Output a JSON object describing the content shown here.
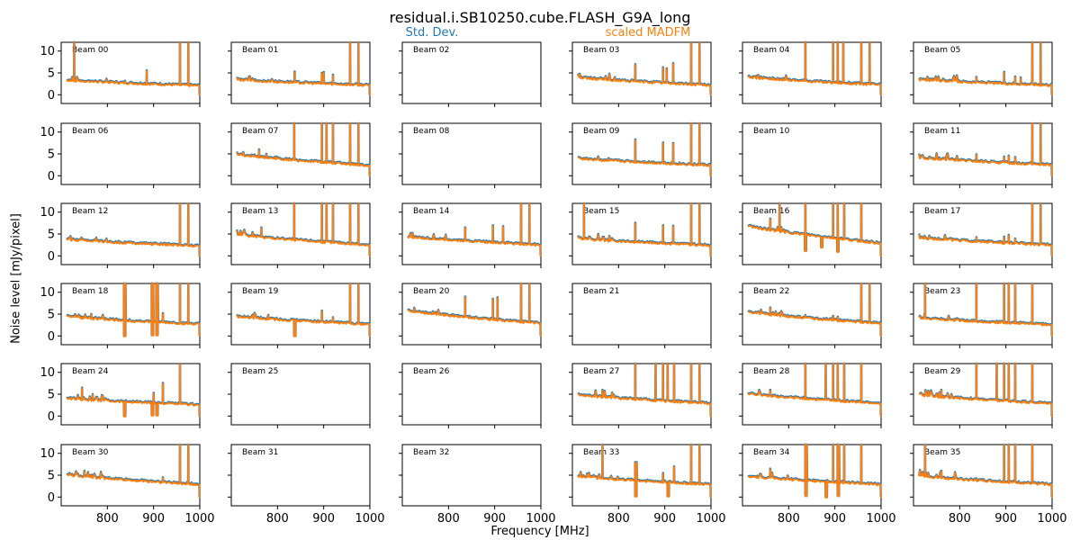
{
  "chart_data": {
    "type": "line",
    "title": "residual.i.SB10250.cube.FLASH_G9A_long",
    "xlabel": "Frequency [MHz]",
    "ylabel": "Noise level [mJy/pixel]",
    "xlim": [
      700,
      1000
    ],
    "ylim": [
      -2,
      12
    ],
    "xticks": [
      800,
      900,
      1000
    ],
    "yticks": [
      0,
      5,
      10
    ],
    "series_legend": [
      {
        "name": "Std. Dev.",
        "color": "#1f77b4"
      },
      {
        "name": "scaled MADFM",
        "color": "#ff7f0e"
      }
    ],
    "grid_rows": 6,
    "grid_cols": 6,
    "beams": [
      {
        "label": "Beam 00",
        "has_data": true,
        "start": 3.5,
        "end": 2.2,
        "spikes": [
          [
            728,
            12.5
          ],
          [
            838,
            3.2
          ],
          [
            885,
            5.6
          ],
          [
            957,
            12.5
          ],
          [
            975,
            12.5
          ]
        ],
        "dips": []
      },
      {
        "label": "Beam 01",
        "has_data": true,
        "start": 3.6,
        "end": 2.3,
        "spikes": [
          [
            728,
            3.6
          ],
          [
            837,
            5.3
          ],
          [
            896,
            5.0
          ],
          [
            900,
            5.2
          ],
          [
            920,
            4.6
          ],
          [
            957,
            12.5
          ],
          [
            975,
            12.5
          ]
        ],
        "dips": []
      },
      {
        "label": "Beam 02",
        "has_data": false
      },
      {
        "label": "Beam 03",
        "has_data": true,
        "start": 4.1,
        "end": 2.3,
        "spikes": [
          [
            740,
            3.8
          ],
          [
            836,
            7.0
          ],
          [
            896,
            6.3
          ],
          [
            904,
            6.0
          ],
          [
            918,
            7.2
          ],
          [
            957,
            12.5
          ],
          [
            975,
            12.5
          ]
        ],
        "dips": []
      },
      {
        "label": "Beam 04",
        "has_data": true,
        "start": 4.2,
        "end": 2.4,
        "spikes": [
          [
            765,
            4.0
          ],
          [
            836,
            12.5
          ],
          [
            896,
            12.5
          ],
          [
            906,
            12.5
          ],
          [
            918,
            12.5
          ],
          [
            957,
            12.5
          ],
          [
            975,
            12.5
          ]
        ],
        "dips": []
      },
      {
        "label": "Beam 05",
        "has_data": true,
        "start": 3.6,
        "end": 2.3,
        "spikes": [
          [
            836,
            4.1
          ],
          [
            896,
            5.2
          ],
          [
            920,
            4.2
          ],
          [
            932,
            4.0
          ],
          [
            957,
            12.5
          ],
          [
            975,
            12.5
          ]
        ],
        "dips": []
      },
      {
        "label": "Beam 06",
        "has_data": false
      },
      {
        "label": "Beam 07",
        "has_data": true,
        "start": 5.0,
        "end": 2.5,
        "spikes": [
          [
            760,
            6.0
          ],
          [
            836,
            12.5
          ],
          [
            896,
            12.5
          ],
          [
            906,
            12.5
          ],
          [
            920,
            12.5
          ],
          [
            957,
            12.5
          ],
          [
            975,
            12.5
          ]
        ],
        "dips": []
      },
      {
        "label": "Beam 08",
        "has_data": false
      },
      {
        "label": "Beam 09",
        "has_data": true,
        "start": 4.1,
        "end": 2.5,
        "spikes": [
          [
            836,
            8.3
          ],
          [
            896,
            7.6
          ],
          [
            918,
            7.5
          ],
          [
            957,
            12.5
          ],
          [
            975,
            12.5
          ]
        ],
        "dips": []
      },
      {
        "label": "Beam 10",
        "has_data": false
      },
      {
        "label": "Beam 11",
        "has_data": true,
        "start": 4.3,
        "end": 2.6,
        "spikes": [
          [
            836,
            4.9
          ],
          [
            896,
            4.4
          ],
          [
            906,
            4.6
          ],
          [
            920,
            4.3
          ],
          [
            957,
            12.5
          ],
          [
            975,
            12.5
          ]
        ],
        "dips": []
      },
      {
        "label": "Beam 12",
        "has_data": true,
        "start": 3.9,
        "end": 2.4,
        "spikes": [
          [
            957,
            12.5
          ],
          [
            975,
            12.5
          ]
        ],
        "dips": []
      },
      {
        "label": "Beam 13",
        "has_data": true,
        "start": 5.0,
        "end": 2.6,
        "spikes": [
          [
            765,
            6.5
          ],
          [
            836,
            12.5
          ],
          [
            896,
            12.5
          ],
          [
            906,
            12.5
          ],
          [
            920,
            12.5
          ],
          [
            957,
            12.5
          ],
          [
            975,
            12.5
          ]
        ],
        "dips": []
      },
      {
        "label": "Beam 14",
        "has_data": true,
        "start": 4.5,
        "end": 2.6,
        "spikes": [
          [
            836,
            6.5
          ],
          [
            896,
            7.0
          ],
          [
            918,
            6.8
          ],
          [
            957,
            12.5
          ],
          [
            975,
            12.5
          ]
        ],
        "dips": []
      },
      {
        "label": "Beam 15",
        "has_data": true,
        "start": 4.1,
        "end": 2.5,
        "spikes": [
          [
            725,
            12.5
          ],
          [
            836,
            7.6
          ],
          [
            896,
            7.0
          ],
          [
            918,
            6.9
          ],
          [
            957,
            12.5
          ],
          [
            975,
            12.5
          ]
        ],
        "dips": []
      },
      {
        "label": "Beam 16",
        "has_data": true,
        "start": 7.0,
        "end": 3.0,
        "spikes": [
          [
            760,
            8.5
          ],
          [
            780,
            12.5
          ],
          [
            836,
            12.5
          ],
          [
            896,
            12.5
          ],
          [
            906,
            12.5
          ],
          [
            920,
            12.5
          ],
          [
            957,
            12.5
          ]
        ],
        "dips": [
          [
            835,
            1.2
          ],
          [
            870,
            2.0
          ],
          [
            905,
            1.0
          ]
        ]
      },
      {
        "label": "Beam 17",
        "has_data": true,
        "start": 4.3,
        "end": 2.6,
        "spikes": [
          [
            836,
            4.3
          ],
          [
            896,
            4.4
          ],
          [
            906,
            4.8
          ],
          [
            920,
            4.0
          ],
          [
            957,
            12.5
          ],
          [
            975,
            12.5
          ]
        ],
        "dips": []
      },
      {
        "label": "Beam 18",
        "has_data": true,
        "start": 4.6,
        "end": 2.8,
        "spikes": [
          [
            765,
            5.0
          ],
          [
            836,
            12.5
          ],
          [
            896,
            12.5
          ],
          [
            906,
            12.5
          ],
          [
            920,
            5.2
          ],
          [
            957,
            12.5
          ],
          [
            975,
            12.5
          ]
        ],
        "dips": [
          [
            836,
            0.0
          ],
          [
            896,
            0.2
          ],
          [
            906,
            0.2
          ]
        ]
      },
      {
        "label": "Beam 19",
        "has_data": true,
        "start": 4.6,
        "end": 2.8,
        "spikes": [
          [
            780,
            4.8
          ],
          [
            896,
            5.8
          ],
          [
            920,
            4.3
          ],
          [
            957,
            12.5
          ],
          [
            975,
            12.5
          ]
        ],
        "dips": [
          [
            836,
            0.0
          ]
        ]
      },
      {
        "label": "Beam 20",
        "has_data": true,
        "start": 6.0,
        "end": 3.0,
        "spikes": [
          [
            836,
            9.0
          ],
          [
            896,
            8.5
          ],
          [
            906,
            8.8
          ],
          [
            957,
            12.5
          ],
          [
            975,
            12.5
          ]
        ],
        "dips": []
      },
      {
        "label": "Beam 21",
        "has_data": false
      },
      {
        "label": "Beam 22",
        "has_data": true,
        "start": 5.6,
        "end": 3.0,
        "spikes": [
          [
            760,
            6.5
          ],
          [
            836,
            4.8
          ],
          [
            896,
            4.6
          ],
          [
            906,
            4.4
          ],
          [
            957,
            12.5
          ],
          [
            975,
            12.5
          ]
        ],
        "dips": []
      },
      {
        "label": "Beam 23",
        "has_data": true,
        "start": 4.3,
        "end": 2.7,
        "spikes": [
          [
            725,
            12.5
          ],
          [
            836,
            12.5
          ],
          [
            896,
            12.5
          ],
          [
            906,
            12.5
          ],
          [
            920,
            12.5
          ],
          [
            957,
            12.5
          ]
        ],
        "dips": []
      },
      {
        "label": "Beam 24",
        "has_data": true,
        "start": 4.2,
        "end": 2.7,
        "spikes": [
          [
            745,
            6.5
          ],
          [
            768,
            5.0
          ],
          [
            900,
            5.3
          ],
          [
            920,
            7.6
          ],
          [
            957,
            12.5
          ]
        ],
        "dips": [
          [
            836,
            0.0
          ],
          [
            896,
            0.2
          ],
          [
            906,
            0.2
          ]
        ]
      },
      {
        "label": "Beam 25",
        "has_data": false
      },
      {
        "label": "Beam 26",
        "has_data": false
      },
      {
        "label": "Beam 27",
        "has_data": true,
        "start": 5.0,
        "end": 3.0,
        "spikes": [
          [
            765,
            6.0
          ],
          [
            836,
            12.5
          ],
          [
            880,
            12.5
          ],
          [
            896,
            12.5
          ],
          [
            906,
            12.5
          ],
          [
            920,
            12.5
          ],
          [
            957,
            12.5
          ],
          [
            975,
            12.5
          ]
        ],
        "dips": []
      },
      {
        "label": "Beam 28",
        "has_data": true,
        "start": 5.3,
        "end": 3.0,
        "spikes": [
          [
            760,
            6.0
          ],
          [
            836,
            12.5
          ],
          [
            880,
            12.5
          ],
          [
            896,
            12.5
          ],
          [
            906,
            12.5
          ],
          [
            920,
            12.5
          ],
          [
            957,
            12.5
          ]
        ],
        "dips": []
      },
      {
        "label": "Beam 29",
        "has_data": true,
        "start": 5.0,
        "end": 3.0,
        "spikes": [
          [
            760,
            6.0
          ],
          [
            836,
            12.5
          ],
          [
            880,
            12.5
          ],
          [
            896,
            12.5
          ],
          [
            906,
            12.5
          ],
          [
            920,
            12.5
          ],
          [
            957,
            12.5
          ]
        ],
        "dips": []
      },
      {
        "label": "Beam 30",
        "has_data": true,
        "start": 5.3,
        "end": 3.0,
        "spikes": [
          [
            750,
            6.0
          ],
          [
            836,
            4.0
          ],
          [
            896,
            3.8
          ],
          [
            920,
            4.5
          ],
          [
            957,
            12.5
          ],
          [
            975,
            12.5
          ]
        ],
        "dips": []
      },
      {
        "label": "Beam 31",
        "has_data": false
      },
      {
        "label": "Beam 32",
        "has_data": false
      },
      {
        "label": "Beam 33",
        "has_data": true,
        "start": 4.9,
        "end": 3.0,
        "spikes": [
          [
            765,
            12.5
          ],
          [
            836,
            8.0
          ],
          [
            896,
            5.5
          ],
          [
            920,
            7.0
          ],
          [
            957,
            12.5
          ],
          [
            975,
            12.5
          ]
        ],
        "dips": [
          [
            836,
            0.2
          ],
          [
            906,
            0.2
          ]
        ]
      },
      {
        "label": "Beam 34",
        "has_data": true,
        "start": 4.9,
        "end": 3.0,
        "spikes": [
          [
            760,
            6.5
          ],
          [
            836,
            12.5
          ],
          [
            896,
            12.5
          ],
          [
            906,
            12.5
          ],
          [
            920,
            12.5
          ],
          [
            957,
            12.5
          ]
        ],
        "dips": [
          [
            836,
            0.3
          ],
          [
            880,
            0.0
          ],
          [
            906,
            0.3
          ]
        ]
      },
      {
        "label": "Beam 35",
        "has_data": true,
        "start": 5.0,
        "end": 3.0,
        "spikes": [
          [
            725,
            12.5
          ],
          [
            760,
            6.0
          ],
          [
            836,
            4.3
          ],
          [
            896,
            12.5
          ],
          [
            906,
            12.5
          ],
          [
            920,
            12.5
          ],
          [
            957,
            12.5
          ]
        ],
        "dips": []
      }
    ]
  }
}
